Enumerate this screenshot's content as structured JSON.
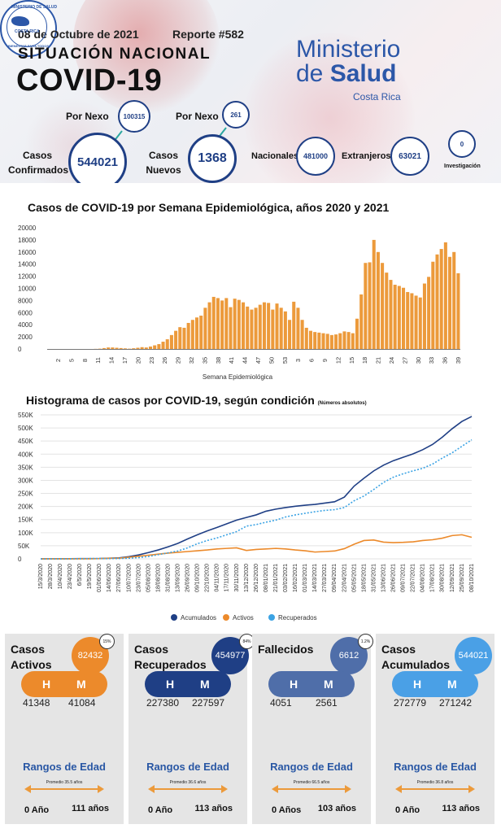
{
  "header": {
    "date": "08 de Octubre de 2021",
    "report": "Reporte #582",
    "situation": "SITUACIÓN NACIONAL",
    "title": "COVID-19",
    "ministry_line1": "Ministerio",
    "ministry_line2_de": "de",
    "ministry_line2_salud": "Salud",
    "ministry_country": "Costa Rica",
    "seal_top": "MINISTERIO DE SALUD",
    "seal_mid": "COSTA RICA",
    "seal_bottom": "BIENESTAR PARA TODOS"
  },
  "summary": {
    "nexo_label_1": "Por Nexo",
    "nexo_value_1": "100315",
    "nexo_label_2": "Por Nexo",
    "nexo_value_2": "261",
    "confirmed_label": "Casos Confirmados",
    "confirmed_line1": "Casos",
    "confirmed_line2": "Confirmados",
    "confirmed_value": "544021",
    "new_line1": "Casos",
    "new_line2": "Nuevos",
    "new_value": "1368",
    "nacionales_label": "Nacionales",
    "nacionales_value": "481000",
    "extranjeros_label": "Extranjeros",
    "extranjeros_value": "63021",
    "investigacion_label": "Investigación",
    "investigacion_value": "0"
  },
  "chart_data": [
    {
      "type": "bar",
      "title": "Casos de COVID-19 por Semana Epidemiológica, años 2020 y 2021",
      "xlabel": "Semana Epidemiológica",
      "ylabel": "",
      "ylim": [
        0,
        20000
      ],
      "yticks": [
        "0",
        "2000",
        "4000",
        "6000",
        "8000",
        "10000",
        "12000",
        "14000",
        "16000",
        "18000",
        "20000"
      ],
      "tick_labels": [
        "2",
        "5",
        "8",
        "11",
        "14",
        "17",
        "20",
        "23",
        "26",
        "29",
        "32",
        "35",
        "38",
        "41",
        "44",
        "47",
        "50",
        "53",
        "3",
        "6",
        "9",
        "12",
        "15",
        "18",
        "21",
        "24",
        "27",
        "30",
        "33",
        "36",
        "39"
      ],
      "color": "#ec9a3b",
      "values": [
        0,
        0,
        0,
        0,
        0,
        0,
        0,
        0,
        0,
        0,
        0,
        20,
        50,
        150,
        250,
        250,
        200,
        150,
        100,
        50,
        120,
        200,
        300,
        250,
        400,
        600,
        800,
        1200,
        1600,
        2300,
        3000,
        3600,
        3500,
        4300,
        4800,
        5200,
        5500,
        6800,
        7700,
        8600,
        8400,
        8000,
        8400,
        6900,
        8300,
        8100,
        7700,
        7000,
        6500,
        6800,
        7300,
        7700,
        7600,
        6500,
        7500,
        6800,
        6200,
        4800,
        7800,
        6800,
        4800,
        3500,
        3000,
        2800,
        2700,
        2600,
        2500,
        2300,
        2400,
        2600,
        2900,
        2800,
        2600,
        5000,
        9000,
        14200,
        14300,
        18000,
        16000,
        14200,
        12600,
        11400,
        10600,
        10400,
        10100,
        9400,
        9200,
        8800,
        8500,
        10800,
        11900,
        14400,
        15600,
        16500,
        17600,
        15200,
        16000,
        12500
      ]
    },
    {
      "type": "line",
      "title": "Histograma de casos por COVID-19, según condición",
      "subtitle": "(Números absolutos)",
      "ylim": [
        0,
        550000
      ],
      "yticks": [
        "0",
        "50K",
        "100K",
        "150K",
        "200K",
        "250K",
        "300K",
        "350K",
        "400K",
        "450K",
        "500K",
        "550K"
      ],
      "x": [
        "15/3/2020",
        "28/3/2020",
        "10/4/2020",
        "23/4/2020",
        "6/5/2020",
        "19/5/2020",
        "01/06/2020",
        "14/06/2020",
        "27/06/2020",
        "10/07/2020",
        "23/07/2020",
        "05/08/2020",
        "18/08/2020",
        "31/08/2020",
        "13/09/2020",
        "26/09/2020",
        "09/10/2020",
        "22/10/2020",
        "04/11/2020",
        "17/11/2020",
        "30/11/2020",
        "13/12/2020",
        "26/12/2020",
        "08/01/2021",
        "21/01/2021",
        "03/02/2021",
        "16/02/2021",
        "01/03/2021",
        "14/03/2021",
        "27/03/2021",
        "09/04/2021",
        "22/04/2021",
        "05/05/2021",
        "18/05/2021",
        "31/05/2021",
        "13/06/2021",
        "26/06/2021",
        "09/07/2021",
        "22/07/2021",
        "04/08/2021",
        "17/08/2021",
        "30/08/2021",
        "12/09/2021",
        "25/09/2021",
        "08/10/2021"
      ],
      "series": [
        {
          "name": "Acumulados",
          "color": "#1f3f85",
          "style": "solid",
          "values": [
            50,
            400,
            650,
            700,
            850,
            950,
            1300,
            2500,
            3800,
            8500,
            15000,
            24000,
            34000,
            46000,
            59000,
            76000,
            92000,
            107000,
            120000,
            134000,
            148000,
            158000,
            168000,
            182000,
            190000,
            196000,
            201000,
            205000,
            208000,
            213000,
            218000,
            236000,
            278000,
            308000,
            336000,
            358000,
            375000,
            388000,
            401000,
            417000,
            437000,
            465000,
            497000,
            525000,
            544000
          ]
        },
        {
          "name": "Activos",
          "color": "#ec8a2b",
          "style": "solid",
          "values": [
            50,
            300,
            350,
            300,
            200,
            100,
            800,
            2000,
            2600,
            6000,
            10000,
            14000,
            18000,
            22000,
            25000,
            28000,
            31000,
            34000,
            38000,
            40000,
            42000,
            32000,
            36000,
            38000,
            40000,
            38000,
            34000,
            31000,
            26000,
            28000,
            30000,
            39000,
            56000,
            70000,
            72000,
            64000,
            62000,
            63000,
            65000,
            70000,
            73000,
            79000,
            89000,
            92000,
            82432
          ]
        },
        {
          "name": "Recuperados",
          "color": "#3ba3e4",
          "style": "dotted",
          "values": [
            0,
            50,
            200,
            400,
            600,
            850,
            950,
            1100,
            1400,
            2500,
            4800,
            9000,
            16000,
            23000,
            30000,
            42000,
            58000,
            70000,
            80000,
            92000,
            104000,
            125000,
            131000,
            140000,
            148000,
            160000,
            168000,
            174000,
            180000,
            185000,
            188000,
            196000,
            222000,
            240000,
            265000,
            292000,
            312000,
            325000,
            336000,
            346000,
            362000,
            385000,
            405000,
            430000,
            454977
          ]
        }
      ],
      "legend": "bottom"
    }
  ],
  "cards": [
    {
      "title_1": "Casos",
      "title_2": "Activos",
      "value": "82432",
      "pct": "15%",
      "color": "#ec8a2b",
      "h_label": "H",
      "m_label": "M",
      "h_value": "41348",
      "m_value": "41084",
      "rangos": "Rangos de Edad",
      "promedio": "Promedio 35.5 años",
      "min_age": "0 Año",
      "max_age": "111 años"
    },
    {
      "title_1": "Casos",
      "title_2": "Recuperados",
      "value": "454977",
      "pct": "84%",
      "color": "#1f3f85",
      "h_label": "H",
      "m_label": "M",
      "h_value": "227380",
      "m_value": "227597",
      "rangos": "Rangos de Edad",
      "promedio": "Promedio 36.6 años",
      "min_age": "0 Año",
      "max_age": "113 años"
    },
    {
      "title_1": "Fallecidos",
      "title_2": "",
      "value": "6612",
      "pct": "1.2%",
      "color": "#4f6ea9",
      "h_label": "H",
      "m_label": "M",
      "h_value": "4051",
      "m_value": "2561",
      "rangos": "Rangos de Edad",
      "promedio": "Promedio 66.5 años",
      "min_age": "0 Años",
      "max_age": "103 años"
    },
    {
      "title_1": "Casos",
      "title_2": "Acumulados",
      "value": "544021",
      "pct": "",
      "color": "#4aa0e6",
      "h_label": "H",
      "m_label": "M",
      "h_value": "272779",
      "m_value": "271242",
      "rangos": "Rangos de Edad",
      "promedio": "Promedio 36.8 años",
      "min_age": "0 Año",
      "max_age": "113 años"
    }
  ],
  "age_arrow_color": "#ec9a3b"
}
